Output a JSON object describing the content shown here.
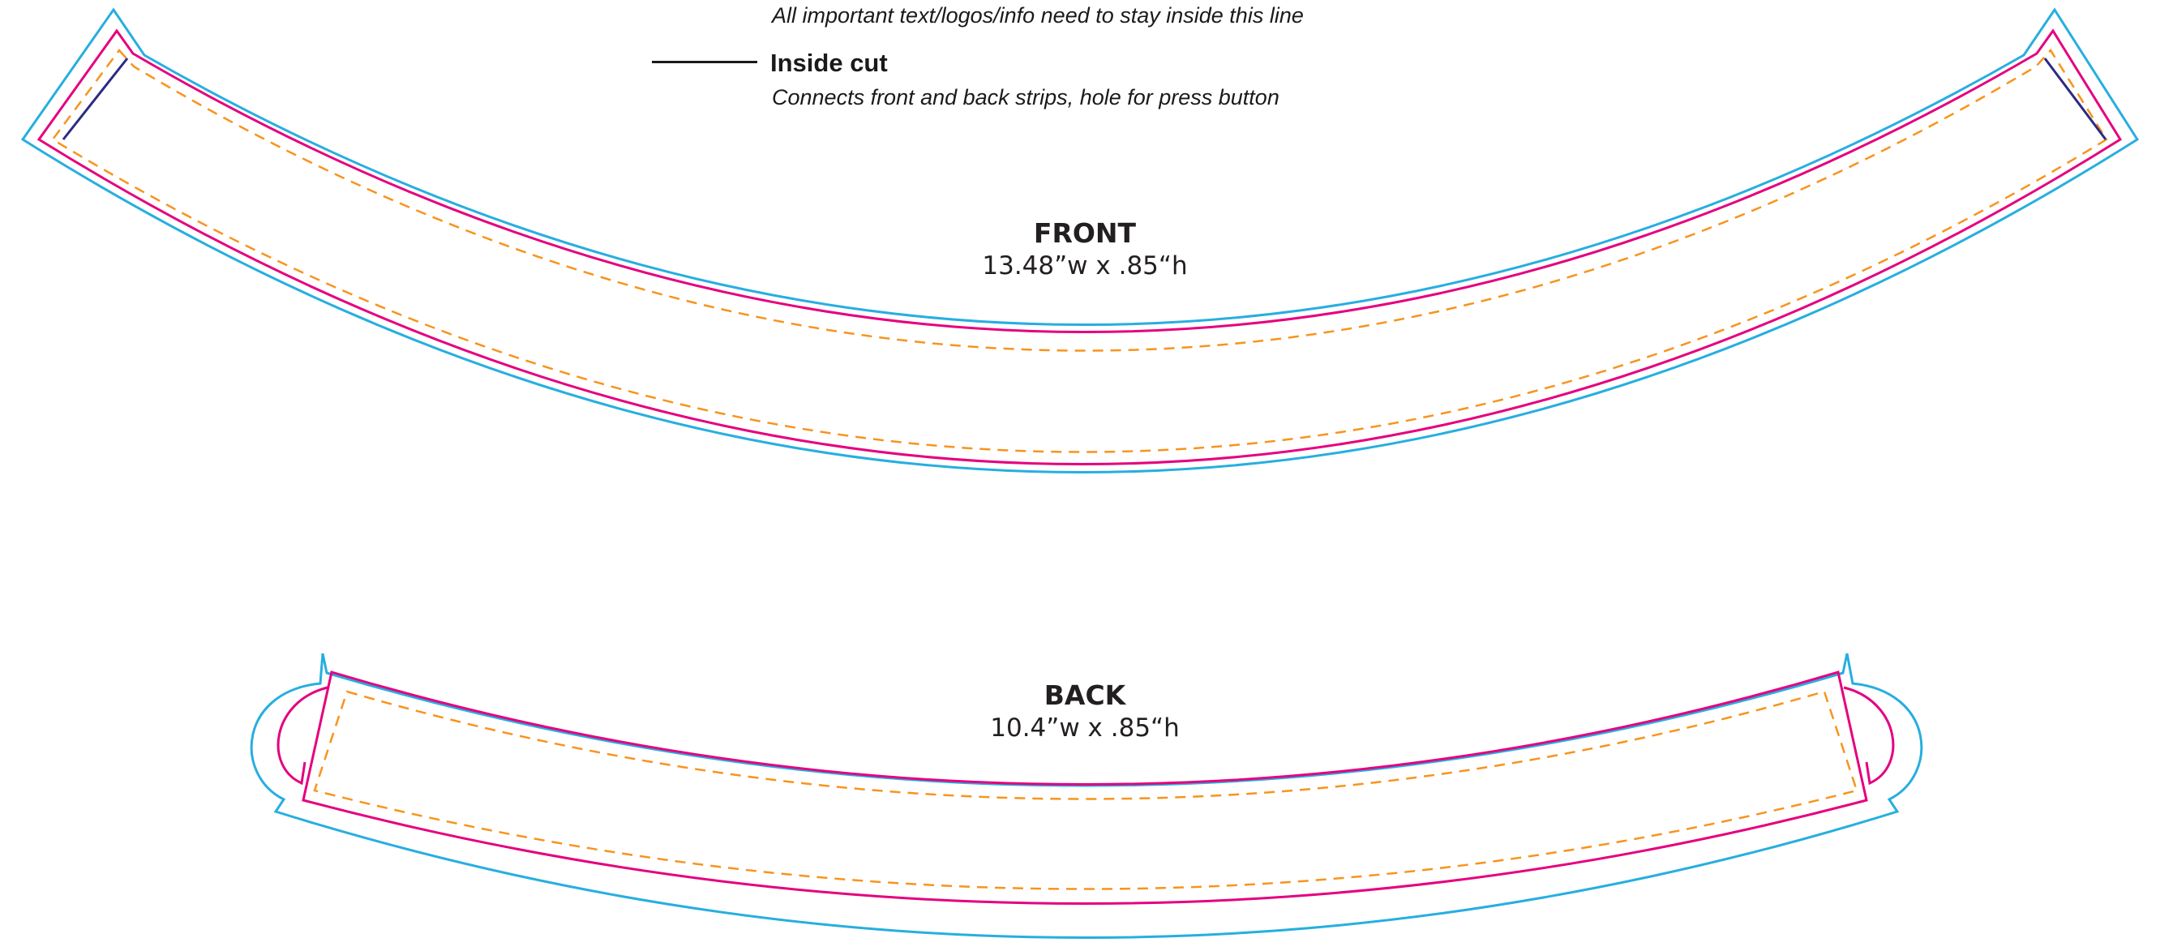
{
  "legend": {
    "safe_zone_note": "All important text/logos/info need to stay inside this line",
    "inside_cut": {
      "title": "Inside cut",
      "note": "Connects front and back strips, hole for press button"
    }
  },
  "pieces": {
    "front": {
      "name": "FRONT",
      "dimensions": "13.48”w x .85“h"
    },
    "back": {
      "name": "BACK",
      "dimensions": "10.4”w x .85“h"
    }
  },
  "colors": {
    "bleed_line": "#27aee0",
    "trim_line": "#e5007e",
    "safe_line": "#f7941d",
    "inside_cut_line": "#2b2a82",
    "text": "#231f20"
  }
}
